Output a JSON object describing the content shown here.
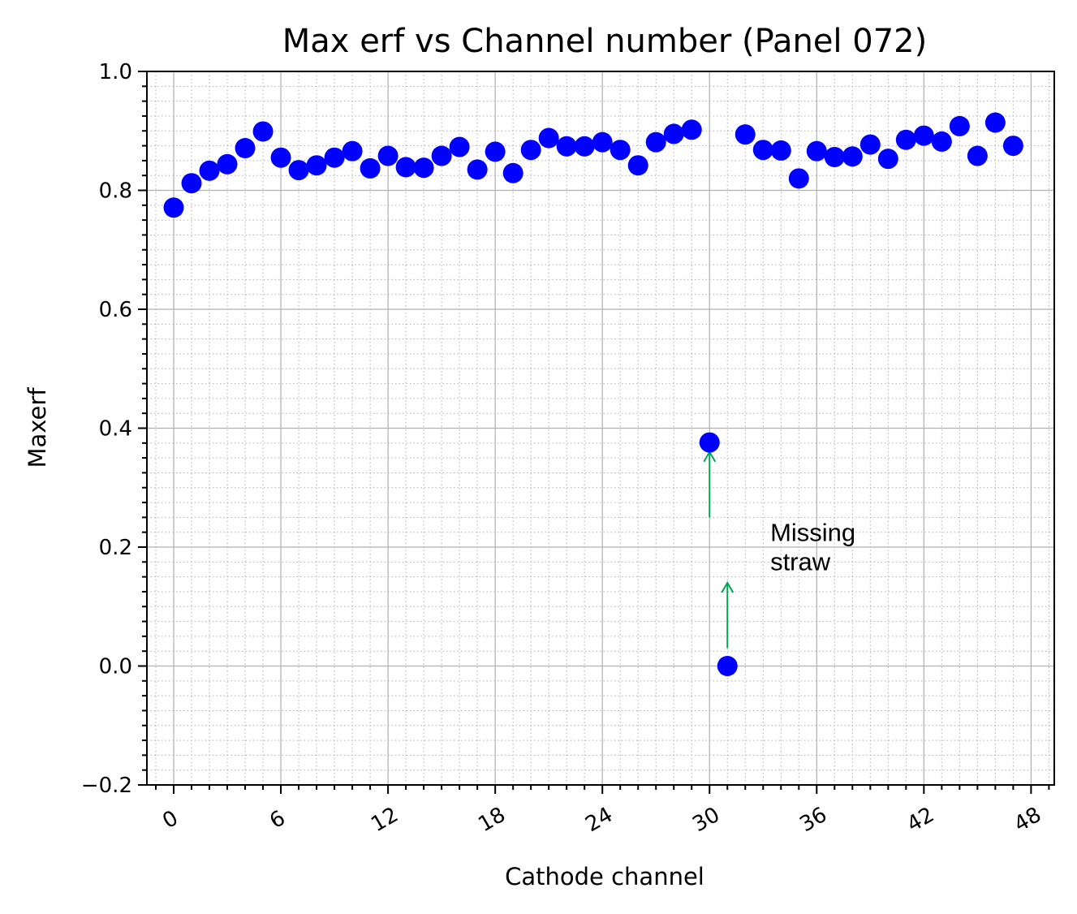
{
  "chart_data": {
    "type": "scatter",
    "title": "Max erf vs Channel number (Panel 072)",
    "xlabel": "Cathode channel",
    "ylabel": "Maxerf",
    "xlim": [
      -1.5,
      49.3
    ],
    "ylim": [
      -0.2,
      1.0
    ],
    "x_ticks": [
      0,
      6,
      12,
      18,
      24,
      30,
      36,
      42,
      48
    ],
    "y_ticks": [
      -0.2,
      0.0,
      0.2,
      0.4,
      0.6,
      0.8,
      1.0
    ],
    "y_tick_labels": [
      "−0.2",
      "0.0",
      "0.2",
      "0.4",
      "0.6",
      "0.8",
      "1.0"
    ],
    "x_minor_step": 1,
    "y_minor_step": 0.025,
    "grid": "major and minor",
    "legend": "none",
    "marker_color": "#0000ff",
    "annotation_color": "#00a550",
    "series": [
      {
        "x": [
          0,
          1,
          2,
          3,
          4,
          5,
          6,
          7,
          8,
          9,
          10,
          11,
          12,
          13,
          14,
          15,
          16,
          17,
          18,
          19,
          20,
          21,
          22,
          23,
          24,
          25,
          26,
          27,
          28,
          29,
          30,
          31,
          32,
          33,
          34,
          35,
          36,
          37,
          38,
          39,
          40,
          41,
          42,
          43,
          44,
          45,
          46,
          47
        ],
        "y": [
          0.771,
          0.812,
          0.833,
          0.844,
          0.871,
          0.899,
          0.855,
          0.834,
          0.842,
          0.855,
          0.866,
          0.837,
          0.858,
          0.839,
          0.838,
          0.858,
          0.873,
          0.835,
          0.865,
          0.829,
          0.868,
          0.888,
          0.874,
          0.874,
          0.881,
          0.868,
          0.842,
          0.881,
          0.895,
          0.902,
          0.376,
          0.0,
          0.894,
          0.868,
          0.867,
          0.82,
          0.866,
          0.856,
          0.857,
          0.877,
          0.853,
          0.885,
          0.892,
          0.882,
          0.908,
          0.858,
          0.914,
          0.875
        ]
      }
    ],
    "annotations": [
      {
        "text": [
          "Missing",
          "straw"
        ],
        "x": 33.4,
        "y": 0.21
      },
      {
        "type": "arrow",
        "x": 30,
        "from_y": 0.25,
        "to_y": 0.36
      },
      {
        "type": "arrow",
        "x": 31,
        "from_y": 0.03,
        "to_y": 0.14
      }
    ]
  }
}
